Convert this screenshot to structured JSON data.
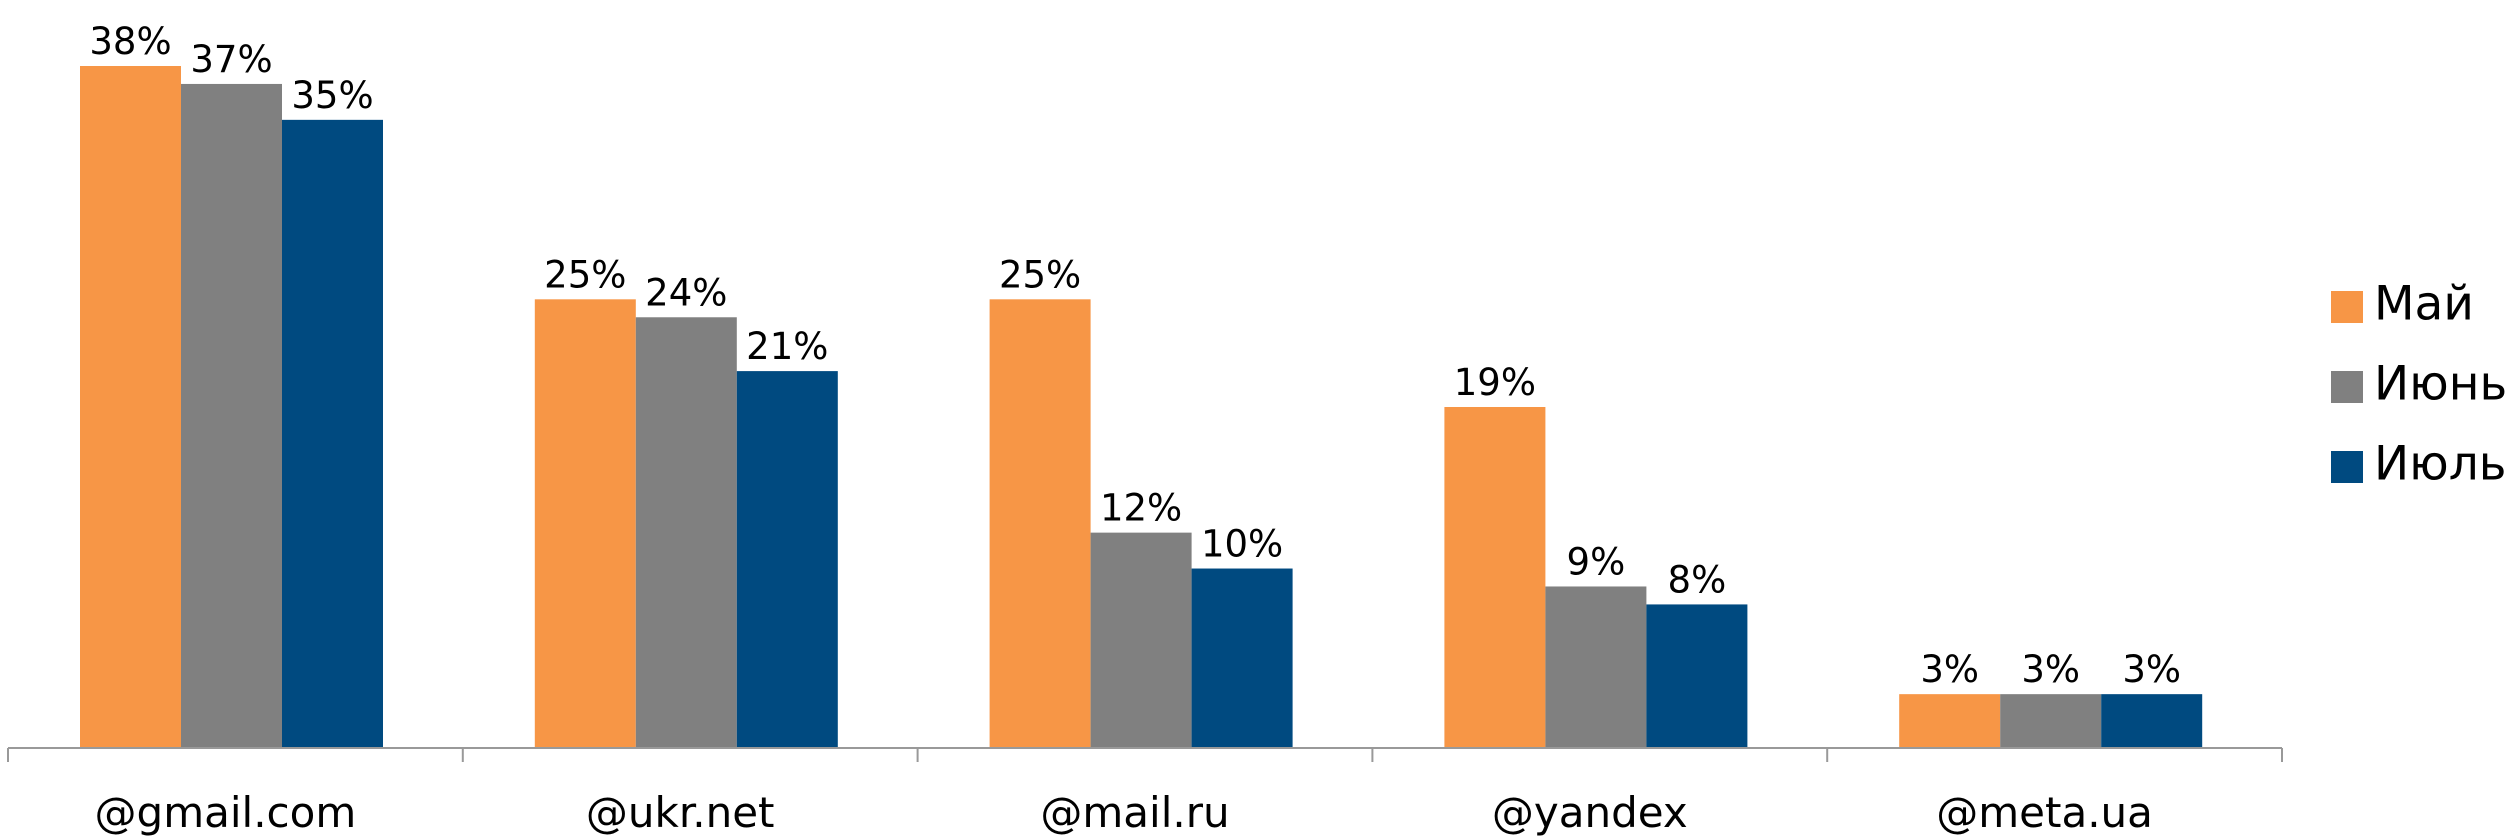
{
  "chart_data": {
    "type": "bar",
    "categories": [
      "@gmail.com",
      "@ukr.net",
      "@mail.ru",
      "@yandex",
      "@meta.ua"
    ],
    "series": [
      {
        "name": "Май",
        "color": "#f79646",
        "values": [
          38,
          25,
          25,
          19,
          3
        ],
        "value_labels": [
          "38%",
          "25%",
          "25%",
          "19%",
          "3%"
        ]
      },
      {
        "name": "Июнь",
        "color": "#808080",
        "values": [
          37,
          24,
          12,
          9,
          3
        ],
        "value_labels": [
          "37%",
          "24%",
          "12%",
          "9%",
          "3%"
        ]
      },
      {
        "name": "Июль",
        "color": "#004a80",
        "values": [
          35,
          21,
          10,
          8,
          3
        ],
        "value_labels": [
          "35%",
          "21%",
          "10%",
          "8%",
          "3%"
        ]
      }
    ],
    "legend": "right"
  }
}
